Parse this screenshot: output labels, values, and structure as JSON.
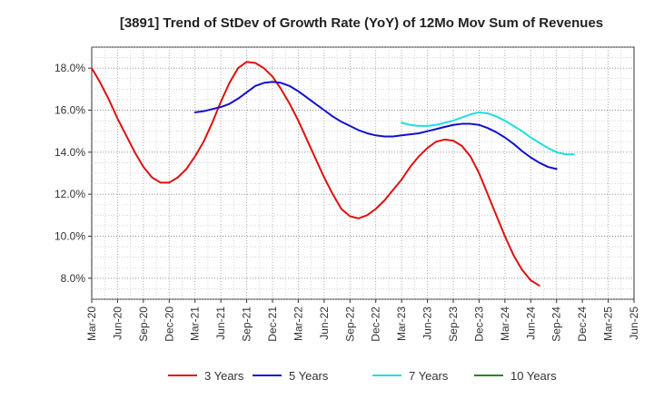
{
  "chart_data": {
    "type": "line",
    "title": "[3891]  Trend of StDev of Growth Rate (YoY) of 12Mo Mov Sum of Revenues",
    "xlabel": "",
    "ylabel": "",
    "ylim": [
      7.0,
      19.0
    ],
    "yticks": [
      8.0,
      10.0,
      12.0,
      14.0,
      16.0,
      18.0
    ],
    "ytick_labels": [
      "8.0%",
      "10.0%",
      "12.0%",
      "14.0%",
      "16.0%",
      "18.0%"
    ],
    "grid": true,
    "legend_position": "bottom",
    "x_tick_labels": [
      "Mar-20",
      "Jun-20",
      "Sep-20",
      "Dec-20",
      "Mar-21",
      "Jun-21",
      "Sep-21",
      "Dec-21",
      "Mar-22",
      "Jun-22",
      "Sep-22",
      "Dec-22",
      "Mar-23",
      "Jun-23",
      "Sep-23",
      "Dec-23",
      "Mar-24",
      "Jun-24",
      "Sep-24",
      "Dec-24",
      "Mar-25",
      "Jun-25"
    ],
    "x_unit": "months since Mar-20",
    "x_max": 63,
    "series": [
      {
        "name": "3 Years",
        "color": "#dd1111",
        "start_month": 0,
        "values": [
          18.0,
          17.3,
          16.5,
          15.6,
          14.8,
          14.0,
          13.3,
          12.8,
          12.55,
          12.55,
          12.8,
          13.2,
          13.8,
          14.5,
          15.4,
          16.4,
          17.3,
          18.0,
          18.3,
          18.25,
          18.0,
          17.6,
          17.0,
          16.3,
          15.5,
          14.6,
          13.7,
          12.8,
          12.0,
          11.3,
          10.95,
          10.85,
          11.0,
          11.3,
          11.7,
          12.2,
          12.7,
          13.3,
          13.8,
          14.2,
          14.5,
          14.6,
          14.55,
          14.3,
          13.8,
          13.0,
          12.0,
          11.0,
          10.0,
          9.1,
          8.4,
          7.9,
          7.65
        ]
      },
      {
        "name": "5 Years",
        "color": "#1111cc",
        "start_month": 12,
        "values": [
          15.9,
          15.95,
          16.05,
          16.15,
          16.3,
          16.55,
          16.85,
          17.15,
          17.3,
          17.35,
          17.3,
          17.15,
          16.9,
          16.6,
          16.3,
          16.0,
          15.7,
          15.45,
          15.25,
          15.05,
          14.9,
          14.8,
          14.75,
          14.75,
          14.8,
          14.85,
          14.9,
          15.0,
          15.1,
          15.2,
          15.3,
          15.35,
          15.35,
          15.3,
          15.15,
          14.95,
          14.7,
          14.4,
          14.05,
          13.75,
          13.5,
          13.3,
          13.2
        ]
      },
      {
        "name": "7 Years",
        "color": "#22dddd",
        "start_month": 36,
        "values": [
          15.4,
          15.3,
          15.25,
          15.25,
          15.3,
          15.4,
          15.5,
          15.65,
          15.8,
          15.9,
          15.85,
          15.7,
          15.5,
          15.25,
          15.0,
          14.7,
          14.45,
          14.2,
          14.0,
          13.9,
          13.9
        ]
      },
      {
        "name": "10 Years",
        "color": "#228822",
        "start_month": 0,
        "values": []
      }
    ]
  }
}
